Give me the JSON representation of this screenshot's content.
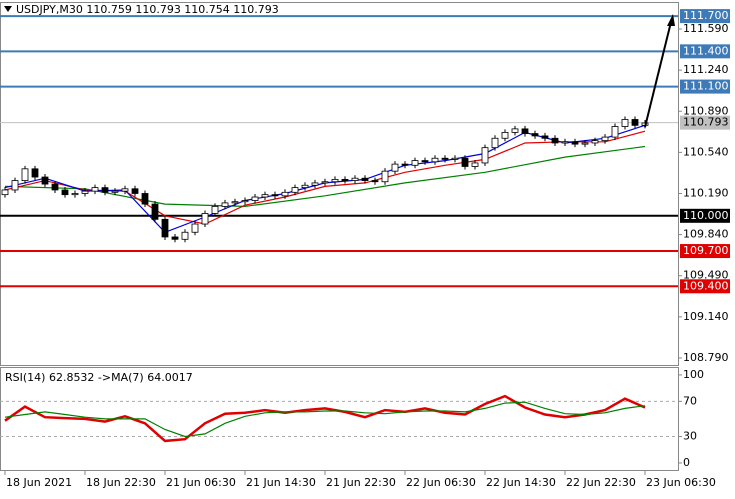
{
  "chart_data": [
    {
      "type": "candlestick",
      "title": "USDJPY,M30  110.759 110.793 110.754 110.793",
      "xlim": [
        -0.5,
        67.3
      ],
      "xticks": [
        {
          "value": 0,
          "label": "18 Jun 2021"
        },
        {
          "value": 8,
          "label": "18 Jun 22:30"
        },
        {
          "value": 16,
          "label": "21 Jun 06:30"
        },
        {
          "value": 24,
          "label": "21 Jun 14:30"
        },
        {
          "value": 32,
          "label": "21 Jun 22:30"
        },
        {
          "value": 40,
          "label": "22 Jun 06:30"
        },
        {
          "value": 48,
          "label": "22 Jun 14:30"
        },
        {
          "value": 56,
          "label": "22 Jun 22:30"
        },
        {
          "value": 64,
          "label": "23 Jun 06:30"
        }
      ],
      "ylim": [
        108.73,
        111.82
      ],
      "yticks": [
        {
          "value": 111.59,
          "label": "111.590"
        },
        {
          "value": 111.24,
          "label": "111.240"
        },
        {
          "value": 110.89,
          "label": "110.890"
        },
        {
          "value": 110.54,
          "label": "110.540"
        },
        {
          "value": 110.19,
          "label": "110.190"
        },
        {
          "value": 109.84,
          "label": "109.840"
        },
        {
          "value": 109.49,
          "label": "109.490"
        },
        {
          "value": 109.14,
          "label": "109.140"
        },
        {
          "value": 108.79,
          "label": "108.790"
        }
      ],
      "levels": [
        {
          "value": 111.7,
          "label": "111.700",
          "color": "#3e7ab8"
        },
        {
          "value": 111.4,
          "label": "111.400",
          "color": "#3e7ab8"
        },
        {
          "value": 111.1,
          "label": "111.100",
          "color": "#3e7ab8"
        },
        {
          "value": 110.793,
          "label": "110.793",
          "color": "#c0c0c0"
        },
        {
          "value": 110.0,
          "label": "110.000",
          "color": "#000000"
        },
        {
          "value": 109.7,
          "label": "109.700",
          "color": "#e00000"
        },
        {
          "value": 109.4,
          "label": "109.400",
          "color": "#e00000"
        }
      ],
      "x": [
        0,
        1,
        2,
        3,
        4,
        5,
        6,
        7,
        8,
        9,
        10,
        11,
        12,
        13,
        14,
        15,
        16,
        17,
        18,
        19,
        20,
        21,
        22,
        23,
        24,
        25,
        26,
        27,
        28,
        29,
        30,
        31,
        32,
        33,
        34,
        35,
        36,
        37,
        38,
        39,
        40,
        41,
        42,
        43,
        44,
        45,
        46,
        47,
        48,
        49,
        50,
        51,
        52,
        53,
        54,
        55,
        56,
        57,
        58,
        59,
        60,
        61,
        62,
        63,
        64
      ],
      "open": [
        110.18,
        110.22,
        110.3,
        110.4,
        110.33,
        110.27,
        110.22,
        110.18,
        110.19,
        110.21,
        110.24,
        110.2,
        110.21,
        110.23,
        110.19,
        110.1,
        109.97,
        109.82,
        109.8,
        109.86,
        109.93,
        110.02,
        110.08,
        110.11,
        110.12,
        110.13,
        110.16,
        110.18,
        110.17,
        110.2,
        110.24,
        110.26,
        110.28,
        110.29,
        110.31,
        110.3,
        110.32,
        110.3,
        110.29,
        110.38,
        110.44,
        110.43,
        110.47,
        110.46,
        110.49,
        110.48,
        110.49,
        110.42,
        110.45,
        110.58,
        110.66,
        110.71,
        110.74,
        110.7,
        110.68,
        110.66,
        110.62,
        110.63,
        110.61,
        110.62,
        110.64,
        110.67,
        110.76,
        110.82,
        110.77
      ],
      "close": [
        110.22,
        110.3,
        110.4,
        110.33,
        110.27,
        110.22,
        110.18,
        110.19,
        110.21,
        110.24,
        110.2,
        110.21,
        110.23,
        110.19,
        110.1,
        109.97,
        109.82,
        109.8,
        109.86,
        109.93,
        110.02,
        110.08,
        110.11,
        110.12,
        110.13,
        110.16,
        110.18,
        110.17,
        110.2,
        110.24,
        110.26,
        110.28,
        110.29,
        110.31,
        110.3,
        110.32,
        110.3,
        110.29,
        110.38,
        110.44,
        110.43,
        110.47,
        110.46,
        110.49,
        110.48,
        110.49,
        110.42,
        110.45,
        110.58,
        110.66,
        110.71,
        110.74,
        110.7,
        110.68,
        110.66,
        110.62,
        110.63,
        110.61,
        110.62,
        110.64,
        110.67,
        110.76,
        110.82,
        110.77,
        110.79
      ],
      "series": [
        {
          "color": "#008000",
          "x": [
            0,
            8,
            16,
            24,
            32,
            40,
            48,
            56,
            64
          ],
          "values": [
            110.25,
            110.23,
            110.1,
            110.08,
            110.17,
            110.28,
            110.37,
            110.5,
            110.59
          ]
        },
        {
          "color": "#e00000",
          "x": [
            0,
            4,
            8,
            12,
            16,
            20,
            24,
            28,
            32,
            36,
            40,
            44,
            48,
            52,
            56,
            60,
            64
          ],
          "values": [
            110.22,
            110.3,
            110.22,
            110.21,
            110.0,
            109.93,
            110.09,
            110.16,
            110.25,
            110.28,
            110.37,
            110.43,
            110.48,
            110.62,
            110.63,
            110.63,
            110.72
          ]
        },
        {
          "color": "#0000e0",
          "x": [
            0,
            4,
            8,
            12,
            16,
            20,
            24,
            28,
            32,
            36,
            40,
            44,
            48,
            52,
            56,
            60,
            64
          ],
          "values": [
            110.24,
            110.32,
            110.21,
            110.22,
            109.86,
            109.99,
            110.13,
            110.19,
            110.28,
            110.31,
            110.43,
            110.47,
            110.53,
            110.71,
            110.62,
            110.66,
            110.77
          ]
        }
      ]
    },
    {
      "type": "line",
      "title": "RSI(14) 62.8532  ->MA(7) 64.0017",
      "ylim": [
        -8,
        109
      ],
      "yticks": [
        100,
        70,
        30,
        0
      ],
      "levels": [
        70,
        30
      ],
      "series": [
        {
          "color": "#e00000",
          "x": [
            0,
            2,
            4,
            6,
            8,
            10,
            12,
            14,
            16,
            18,
            20,
            22,
            24,
            26,
            28,
            30,
            32,
            34,
            36,
            38,
            40,
            42,
            44,
            46,
            48,
            50,
            52,
            54,
            56,
            58,
            60,
            62,
            64
          ],
          "values": [
            48,
            64,
            52,
            51,
            50,
            47,
            53,
            45,
            25,
            27,
            45,
            56,
            57,
            60,
            57,
            60,
            62,
            58,
            52,
            60,
            58,
            62,
            57,
            55,
            67,
            76,
            63,
            55,
            52,
            55,
            60,
            73,
            63
          ]
        },
        {
          "color": "#008000",
          "x": [
            0,
            2,
            4,
            6,
            8,
            10,
            12,
            14,
            16,
            18,
            20,
            22,
            24,
            26,
            28,
            30,
            32,
            34,
            36,
            38,
            40,
            42,
            44,
            46,
            48,
            50,
            52,
            54,
            56,
            58,
            60,
            62,
            64
          ],
          "values": [
            52,
            55,
            58,
            55,
            52,
            50,
            50,
            50,
            38,
            30,
            33,
            45,
            53,
            57,
            58,
            58,
            59,
            59,
            57,
            56,
            58,
            59,
            59,
            58,
            62,
            68,
            69,
            62,
            56,
            55,
            57,
            62,
            65
          ]
        }
      ]
    }
  ]
}
